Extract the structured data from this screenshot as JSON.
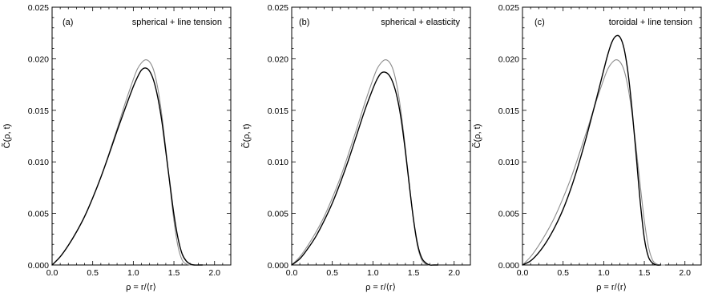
{
  "chart_data": [
    {
      "type": "line",
      "tag": "(a)",
      "title": "spherical + line tension",
      "xlabel": "ρ = r/⟨r⟩",
      "ylabel": "C̃(ρ, t)",
      "xlim": [
        0.0,
        2.2
      ],
      "ylim": [
        0.0,
        0.025
      ],
      "xticks": [
        "0.0",
        "0.5",
        "1.0",
        "1.5",
        "2.0"
      ],
      "yticks": [
        "0.000",
        "0.005",
        "0.010",
        "0.015",
        "0.020",
        "0.025"
      ],
      "series": [
        {
          "color": "#8c8c8c",
          "width": 1.1,
          "x": [
            0.0,
            0.1,
            0.2,
            0.3,
            0.4,
            0.5,
            0.6,
            0.7,
            0.8,
            0.9,
            1.0,
            1.05,
            1.1,
            1.15,
            1.2,
            1.25,
            1.3,
            1.35,
            1.4,
            1.45,
            1.5,
            1.55,
            1.6,
            1.65,
            1.7,
            1.75
          ],
          "y": [
            0.0,
            0.0008,
            0.0019,
            0.0032,
            0.0047,
            0.0065,
            0.0085,
            0.0108,
            0.0132,
            0.0157,
            0.018,
            0.019,
            0.0196,
            0.0199,
            0.0197,
            0.0189,
            0.0172,
            0.0146,
            0.0113,
            0.0077,
            0.0043,
            0.0018,
            0.0005,
            0.0001,
            0.0,
            0.0
          ]
        },
        {
          "color": "#000000",
          "width": 1.4,
          "x": [
            0.0,
            0.1,
            0.2,
            0.3,
            0.4,
            0.5,
            0.6,
            0.7,
            0.8,
            0.9,
            1.0,
            1.05,
            1.1,
            1.15,
            1.2,
            1.25,
            1.3,
            1.35,
            1.4,
            1.45,
            1.5,
            1.55,
            1.6,
            1.65,
            1.7,
            1.75,
            1.8,
            1.85
          ],
          "y": [
            0.0,
            0.0008,
            0.0019,
            0.0032,
            0.0047,
            0.0065,
            0.0085,
            0.0107,
            0.013,
            0.0152,
            0.0173,
            0.0182,
            0.0189,
            0.0191,
            0.0188,
            0.0179,
            0.0163,
            0.014,
            0.011,
            0.0079,
            0.0049,
            0.0026,
            0.0011,
            0.0004,
            0.0001,
            0.0,
            0.0,
            0.0
          ]
        }
      ]
    },
    {
      "type": "line",
      "tag": "(b)",
      "title": "spherical + elasticity",
      "xlabel": "ρ = r/⟨r⟩",
      "ylabel": "C̃(ρ, t)",
      "xlim": [
        0.0,
        2.2
      ],
      "ylim": [
        0.0,
        0.025
      ],
      "xticks": [
        "0.0",
        "0.5",
        "1.0",
        "1.5",
        "2.0"
      ],
      "yticks": [
        "0.000",
        "0.005",
        "0.010",
        "0.015",
        "0.020",
        "0.025"
      ],
      "series": [
        {
          "color": "#8c8c8c",
          "width": 1.1,
          "x": [
            0.0,
            0.1,
            0.2,
            0.3,
            0.4,
            0.5,
            0.6,
            0.7,
            0.8,
            0.9,
            1.0,
            1.05,
            1.1,
            1.15,
            1.2,
            1.25,
            1.3,
            1.35,
            1.4,
            1.45,
            1.5,
            1.55,
            1.6,
            1.65,
            1.7,
            1.75
          ],
          "y": [
            0.0,
            0.0008,
            0.0019,
            0.0032,
            0.0047,
            0.0065,
            0.0085,
            0.0108,
            0.0132,
            0.0157,
            0.018,
            0.019,
            0.0196,
            0.0199,
            0.0197,
            0.0189,
            0.0172,
            0.0146,
            0.0113,
            0.0077,
            0.0043,
            0.0018,
            0.0005,
            0.0001,
            0.0,
            0.0
          ]
        },
        {
          "color": "#000000",
          "width": 1.4,
          "x": [
            0.0,
            0.1,
            0.2,
            0.3,
            0.4,
            0.5,
            0.6,
            0.7,
            0.8,
            0.9,
            1.0,
            1.05,
            1.1,
            1.15,
            1.2,
            1.25,
            1.3,
            1.35,
            1.4,
            1.45,
            1.5,
            1.55,
            1.6,
            1.65,
            1.7,
            1.75,
            1.8
          ],
          "y": [
            0.0,
            0.0006,
            0.0016,
            0.0028,
            0.0043,
            0.006,
            0.008,
            0.0102,
            0.0126,
            0.015,
            0.0171,
            0.018,
            0.0186,
            0.0187,
            0.0184,
            0.0176,
            0.0162,
            0.014,
            0.011,
            0.0076,
            0.0044,
            0.002,
            0.0007,
            0.0002,
            0.0,
            0.0,
            0.0
          ]
        }
      ]
    },
    {
      "type": "line",
      "tag": "(c)",
      "title": "toroidal + line tension",
      "xlabel": "ρ = r/⟨r⟩",
      "ylabel": "C̃(ρ, t)",
      "xlim": [
        0.0,
        2.2
      ],
      "ylim": [
        0.0,
        0.025
      ],
      "xticks": [
        "0.0",
        "0.5",
        "1.0",
        "1.5",
        "2.0"
      ],
      "yticks": [
        "0.000",
        "0.005",
        "0.010",
        "0.015",
        "0.020",
        "0.025"
      ],
      "series": [
        {
          "color": "#8c8c8c",
          "width": 1.1,
          "x": [
            0.0,
            0.1,
            0.2,
            0.3,
            0.4,
            0.5,
            0.6,
            0.7,
            0.8,
            0.9,
            1.0,
            1.05,
            1.1,
            1.15,
            1.2,
            1.25,
            1.3,
            1.35,
            1.4,
            1.45,
            1.5,
            1.55,
            1.6,
            1.65,
            1.7,
            1.75
          ],
          "y": [
            0.0,
            0.0008,
            0.0019,
            0.0032,
            0.0047,
            0.0065,
            0.0085,
            0.0108,
            0.0132,
            0.0157,
            0.018,
            0.019,
            0.0196,
            0.0199,
            0.0197,
            0.0189,
            0.0172,
            0.0146,
            0.0113,
            0.0077,
            0.0043,
            0.0018,
            0.0005,
            0.0001,
            0.0,
            0.0
          ]
        },
        {
          "color": "#000000",
          "width": 1.4,
          "x": [
            0.0,
            0.1,
            0.2,
            0.3,
            0.4,
            0.5,
            0.6,
            0.7,
            0.8,
            0.9,
            1.0,
            1.05,
            1.1,
            1.15,
            1.2,
            1.25,
            1.3,
            1.35,
            1.4,
            1.45,
            1.5,
            1.55,
            1.6,
            1.65,
            1.7
          ],
          "y": [
            0.0,
            0.0004,
            0.0012,
            0.0023,
            0.0037,
            0.0054,
            0.0075,
            0.01,
            0.0128,
            0.0158,
            0.0189,
            0.0204,
            0.0216,
            0.0222,
            0.0221,
            0.021,
            0.0186,
            0.015,
            0.0106,
            0.0061,
            0.0026,
            0.0008,
            0.0002,
            0.0,
            0.0
          ]
        }
      ]
    }
  ]
}
